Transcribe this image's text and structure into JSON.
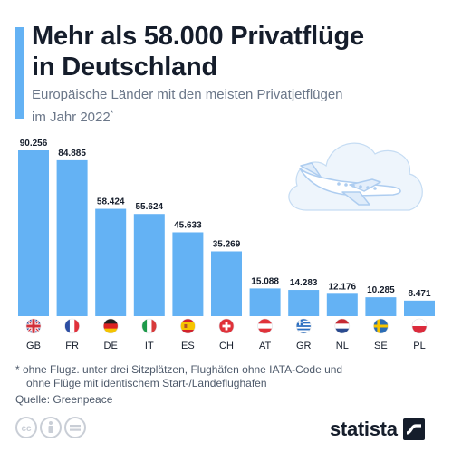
{
  "header": {
    "title_line1": "Mehr als 58.000 Privatflüge",
    "title_line2": "in Deutschland",
    "subtitle_line1": "Europäische Länder mit den meisten Privatjetflügen",
    "subtitle_line2": "im Jahr 2022",
    "subtitle_mark": "*"
  },
  "chart_data": {
    "type": "bar",
    "categories": [
      "GB",
      "FR",
      "DE",
      "IT",
      "ES",
      "CH",
      "AT",
      "GR",
      "NL",
      "SE",
      "PL"
    ],
    "values": [
      90256,
      84885,
      58424,
      55624,
      45633,
      35269,
      15088,
      14283,
      12176,
      10285,
      8471
    ],
    "value_labels": [
      "90.256",
      "84.885",
      "58.424",
      "55.624",
      "45.633",
      "35.269",
      "15.088",
      "14.283",
      "12.176",
      "10.285",
      "8.471"
    ],
    "ylim": [
      0,
      90256
    ],
    "grid": false,
    "legend": "none",
    "bar_color": "#64b2f4",
    "flag_icons": [
      "uk-flag-icon",
      "france-flag-icon",
      "germany-flag-icon",
      "italy-flag-icon",
      "spain-flag-icon",
      "switzerland-flag-icon",
      "austria-flag-icon",
      "greece-flag-icon",
      "netherlands-flag-icon",
      "sweden-flag-icon",
      "poland-flag-icon"
    ]
  },
  "footnote": {
    "line1": "* ohne Flugz. unter drei Sitzplätzen, Flughäfen ohne IATA-Code und",
    "line2": "ohne Flüge mit identischem Start-/Landeflughafen"
  },
  "source": "Quelle: Greenpeace",
  "branding": {
    "logo_text": "statista",
    "license_icons": [
      "cc-icon",
      "attribution-icon",
      "no-derivatives-icon"
    ]
  },
  "colors": {
    "accent": "#64b2f4",
    "title": "#151d2b",
    "text_muted": "#6b7789",
    "cloud_fill": "#eef5fc",
    "cloud_stroke": "#c5dcf3"
  }
}
